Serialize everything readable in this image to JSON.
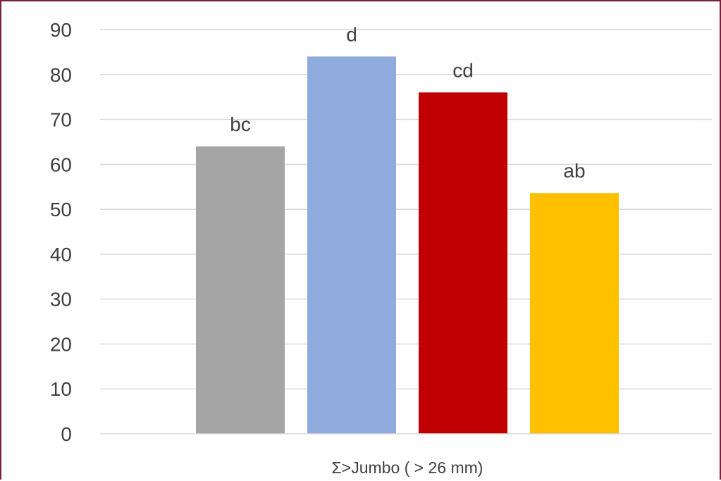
{
  "chart_data": {
    "type": "bar",
    "categories": [
      "Σ>Jumbo ( > 26 mm)"
    ],
    "series": [
      {
        "values": [
          64.0
        ],
        "color": "#a5a5a5",
        "label": "bc"
      },
      {
        "values": [
          84.0
        ],
        "color": "#8faadc",
        "label": "d"
      },
      {
        "values": [
          76.0
        ],
        "color": "#c00000",
        "label": "cd"
      },
      {
        "values": [
          53.6
        ],
        "color": "#ffc000",
        "label": "ab"
      }
    ],
    "title": "",
    "xlabel": "",
    "ylabel": "",
    "ylim": [
      0,
      90
    ],
    "yticks": [
      0,
      10,
      20,
      30,
      40,
      50,
      60,
      70,
      80,
      90
    ],
    "grid": true,
    "legend": "none"
  }
}
